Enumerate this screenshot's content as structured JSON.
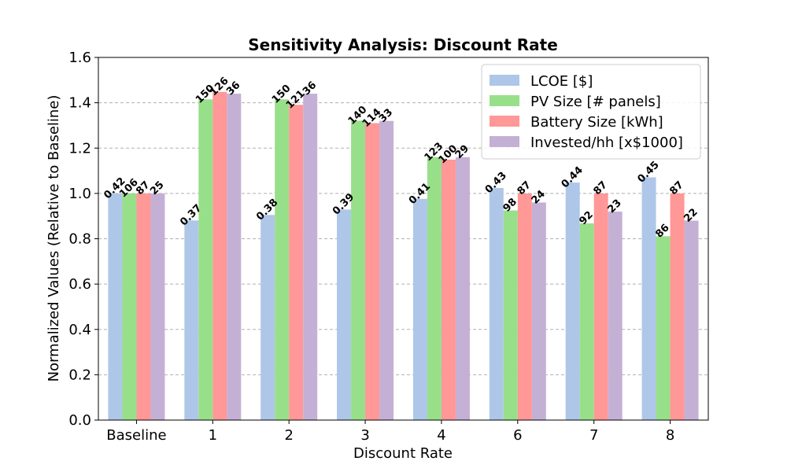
{
  "chart_data": {
    "type": "bar",
    "title": "Sensitivity Analysis: Discount Rate",
    "xlabel": "Discount Rate",
    "ylabel": "Normalized Values (Relative to Baseline)",
    "ylim": [
      0,
      1.6
    ],
    "yticks": [
      "0.0",
      "0.2",
      "0.4",
      "0.6",
      "0.8",
      "1.0",
      "1.2",
      "1.4",
      "1.6"
    ],
    "grid": "y-dashed",
    "legend_position": "top-right",
    "categories": [
      "Baseline",
      "1",
      "2",
      "3",
      "4",
      "6",
      "7",
      "8"
    ],
    "series": [
      {
        "name": "LCOE [$]",
        "color": "#aec7e8",
        "values": [
          1.0,
          0.881,
          0.905,
          0.929,
          0.976,
          1.024,
          1.048,
          1.071
        ],
        "labels": [
          "0.42",
          "0.37",
          "0.38",
          "0.39",
          "0.41",
          "0.43",
          "0.44",
          "0.45"
        ]
      },
      {
        "name": "PV Size [# panels]",
        "color": "#98df8a",
        "values": [
          1.0,
          1.415,
          1.415,
          1.321,
          1.16,
          0.925,
          0.868,
          0.811
        ],
        "labels": [
          "106",
          "150",
          "150",
          "140",
          "123",
          "98",
          "92",
          "86"
        ]
      },
      {
        "name": "Battery Size [kWh]",
        "color": "#ff9896",
        "values": [
          1.0,
          1.448,
          1.391,
          1.31,
          1.149,
          1.0,
          1.0,
          1.0
        ],
        "labels": [
          "87",
          "126",
          "121",
          "114",
          "100",
          "87",
          "87",
          "87"
        ]
      },
      {
        "name": "Invested/hh [x$1000]",
        "color": "#c5b0d5",
        "values": [
          1.0,
          1.44,
          1.44,
          1.32,
          1.16,
          0.96,
          0.92,
          0.88
        ],
        "labels": [
          "25",
          "36",
          "36",
          "33",
          "29",
          "24",
          "23",
          "22"
        ]
      }
    ]
  }
}
